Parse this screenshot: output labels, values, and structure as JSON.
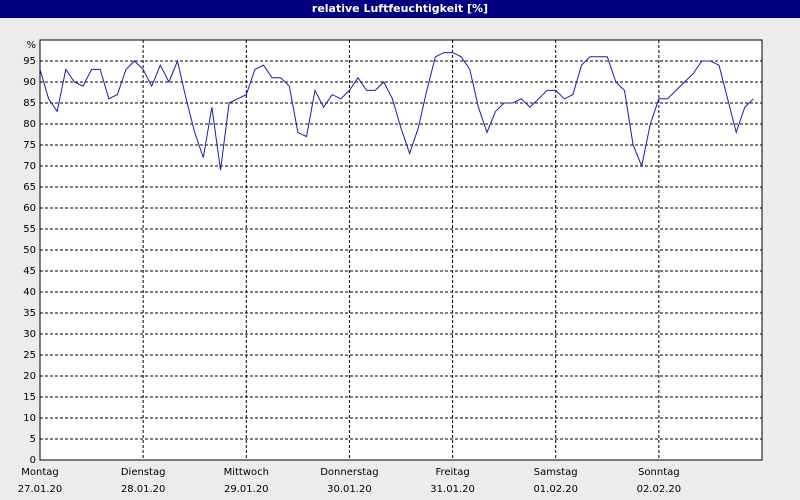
{
  "chart_data": {
    "type": "line",
    "title": "relative Luftfeuchtigkeit [%]",
    "y_unit": "%",
    "color": "#1a1ab8",
    "grid": true,
    "xlim": [
      0,
      7
    ],
    "xticks": [
      {
        "value": 0,
        "label": "Montag",
        "date": "27.01.20"
      },
      {
        "value": 1,
        "label": "Dienstag",
        "date": "28.01.20"
      },
      {
        "value": 2,
        "label": "Mittwoch",
        "date": "29.01.20"
      },
      {
        "value": 3,
        "label": "Donnerstag",
        "date": "30.01.20"
      },
      {
        "value": 4,
        "label": "Freitag",
        "date": "31.01.20"
      },
      {
        "value": 5,
        "label": "Samstag",
        "date": "01.02.20"
      },
      {
        "value": 6,
        "label": "Sonntag",
        "date": "02.02.20"
      }
    ],
    "ylim": [
      0,
      100
    ],
    "yticks": [
      0,
      5,
      10,
      15,
      20,
      25,
      30,
      35,
      40,
      45,
      50,
      55,
      60,
      65,
      70,
      75,
      80,
      85,
      90,
      95
    ],
    "values": [
      93,
      86,
      83,
      93,
      90,
      89,
      93,
      93,
      86,
      87,
      93,
      95,
      93,
      89,
      94,
      90,
      95,
      86,
      78,
      72,
      84,
      69,
      85,
      86,
      87,
      93,
      94,
      91,
      91,
      89,
      78,
      77,
      88,
      84,
      87,
      86,
      88,
      91,
      88,
      88,
      90,
      86,
      79,
      73,
      79,
      88,
      96,
      97,
      97,
      96,
      93,
      84,
      78,
      83,
      85,
      85,
      86,
      84,
      86,
      88,
      88,
      86,
      87,
      94,
      96,
      96,
      96,
      90,
      88,
      75,
      70,
      80,
      86,
      86,
      88,
      90,
      92,
      95,
      95,
      94,
      86,
      78,
      84,
      86
    ]
  }
}
